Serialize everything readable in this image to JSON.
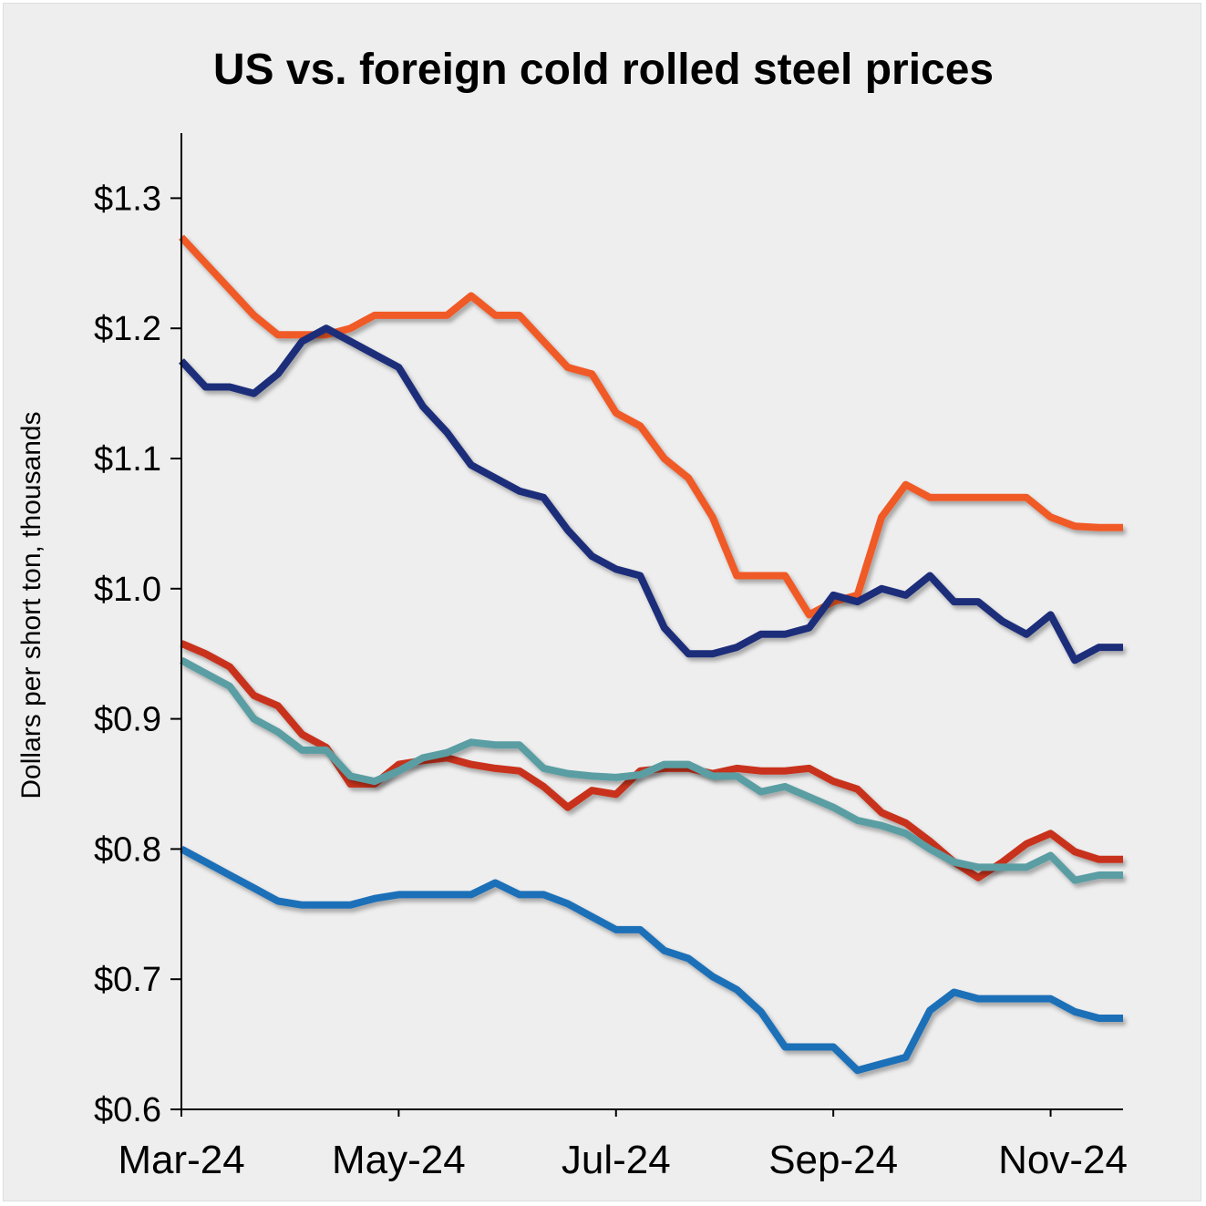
{
  "chart_data": {
    "type": "line",
    "title": "US vs. foreign cold rolled steel prices",
    "ylabel": "Dollars per short ton, thousands",
    "xlabel": "",
    "ylim": [
      0.6,
      1.35
    ],
    "yticks": [
      {
        "value": 1.3,
        "label": "$1.3"
      },
      {
        "value": 1.2,
        "label": "$1.2"
      },
      {
        "value": 1.1,
        "label": "$1.1"
      },
      {
        "value": 1.0,
        "label": "$1.0"
      },
      {
        "value": 0.9,
        "label": "$0.9"
      },
      {
        "value": 0.8,
        "label": "$0.8"
      },
      {
        "value": 0.7,
        "label": "$0.7"
      },
      {
        "value": 0.6,
        "label": "$0.6"
      }
    ],
    "xticks": [
      {
        "week": 0,
        "label": "Mar-24"
      },
      {
        "week": 9,
        "label": "May-24"
      },
      {
        "week": 18,
        "label": "Jul-24"
      },
      {
        "week": 27,
        "label": "Sep-24"
      },
      {
        "week": 36,
        "label": "Nov-24"
      }
    ],
    "x": [
      0,
      1,
      2,
      3,
      4,
      5,
      6,
      7,
      8,
      9,
      10,
      11,
      12,
      13,
      14,
      15,
      16,
      17,
      18,
      19,
      20,
      21,
      22,
      23,
      24,
      25,
      26,
      27,
      28,
      29,
      30,
      31,
      32,
      33,
      34,
      35,
      36,
      37,
      38,
      39
    ],
    "series": [
      {
        "color": "#f05a28",
        "values": [
          1.27,
          1.25,
          1.23,
          1.21,
          1.195,
          1.195,
          1.195,
          1.2,
          1.21,
          1.21,
          1.21,
          1.21,
          1.225,
          1.21,
          1.21,
          1.19,
          1.17,
          1.165,
          1.135,
          1.125,
          1.1,
          1.085,
          1.055,
          1.01,
          1.01,
          1.01,
          0.98,
          0.99,
          0.995,
          1.055,
          1.08,
          1.07,
          1.07,
          1.07,
          1.07,
          1.07,
          1.055,
          1.048,
          1.047,
          1.047
        ]
      },
      {
        "color": "#1f2d7a",
        "values": [
          1.175,
          1.155,
          1.155,
          1.15,
          1.165,
          1.19,
          1.2,
          1.19,
          1.18,
          1.17,
          1.14,
          1.12,
          1.095,
          1.085,
          1.075,
          1.07,
          1.045,
          1.025,
          1.015,
          1.01,
          0.97,
          0.95,
          0.95,
          0.955,
          0.965,
          0.965,
          0.97,
          0.995,
          0.99,
          1.0,
          0.995,
          1.01,
          0.99,
          0.99,
          0.975,
          0.965,
          0.98,
          0.945,
          0.955,
          0.955
        ]
      },
      {
        "color": "#c8321f",
        "values": [
          0.958,
          0.95,
          0.94,
          0.918,
          0.91,
          0.888,
          0.878,
          0.85,
          0.85,
          0.865,
          0.868,
          0.87,
          0.865,
          0.862,
          0.86,
          0.848,
          0.832,
          0.845,
          0.842,
          0.86,
          0.862,
          0.862,
          0.858,
          0.862,
          0.86,
          0.86,
          0.862,
          0.852,
          0.846,
          0.828,
          0.82,
          0.806,
          0.79,
          0.778,
          0.79,
          0.804,
          0.812,
          0.798,
          0.792,
          0.792
        ]
      },
      {
        "color": "#5a9ea3",
        "values": [
          0.945,
          0.935,
          0.925,
          0.9,
          0.89,
          0.876,
          0.876,
          0.856,
          0.852,
          0.86,
          0.87,
          0.874,
          0.882,
          0.88,
          0.88,
          0.862,
          0.858,
          0.856,
          0.855,
          0.857,
          0.865,
          0.865,
          0.856,
          0.856,
          0.844,
          0.848,
          0.84,
          0.832,
          0.822,
          0.818,
          0.812,
          0.8,
          0.79,
          0.786,
          0.786,
          0.786,
          0.795,
          0.776,
          0.78,
          0.78
        ]
      },
      {
        "color": "#1f6fb8",
        "values": [
          0.8,
          0.79,
          0.78,
          0.77,
          0.76,
          0.757,
          0.757,
          0.757,
          0.762,
          0.765,
          0.765,
          0.765,
          0.765,
          0.774,
          0.765,
          0.765,
          0.758,
          0.748,
          0.738,
          0.738,
          0.722,
          0.716,
          0.702,
          0.692,
          0.675,
          0.648,
          0.648,
          0.648,
          0.63,
          0.635,
          0.64,
          0.676,
          0.69,
          0.685,
          0.685,
          0.685,
          0.685,
          0.675,
          0.67,
          0.67
        ]
      }
    ]
  }
}
